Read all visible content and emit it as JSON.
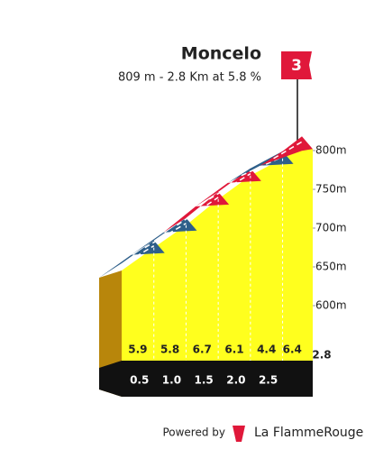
{
  "chart_data": {
    "type": "climb-profile",
    "title": "Moncelo",
    "subtitle": "809 m - 2.8 Km at 5.8 %",
    "category": "3",
    "x": [
      0,
      0.5,
      1,
      1.5,
      2,
      2.5,
      2.8
    ],
    "elevations": [
      645.3,
      674.8,
      703.8,
      737.3,
      767.8,
      789.8,
      809
    ],
    "gradients": [
      5.9,
      5.8,
      6.7,
      6.1,
      4.4,
      6.4
    ],
    "segment_colors": [
      "#2e5f8a",
      "#2e5f8a",
      "#e0183a",
      "#e0183a",
      "#2e5f8a",
      "#e0183a"
    ],
    "xlim": [
      0,
      2.8
    ],
    "xticks": [
      0.5,
      {
        "value": 1,
        "label": "1.0"
      },
      1.5,
      {
        "value": 2,
        "label": "2.0"
      },
      2.5,
      2.8
    ],
    "ylim": [
      600,
      800
    ],
    "yticks": [
      {
        "value": 600,
        "label": "600m"
      },
      {
        "value": 650,
        "label": "650m"
      },
      {
        "value": 700,
        "label": "700m"
      },
      {
        "value": 750,
        "label": "750m"
      },
      {
        "value": 800,
        "label": "800m"
      }
    ],
    "fill_color": "#ffff1e",
    "footer": {
      "powered": "Powered by",
      "brand": "La FlammeRouge"
    }
  }
}
